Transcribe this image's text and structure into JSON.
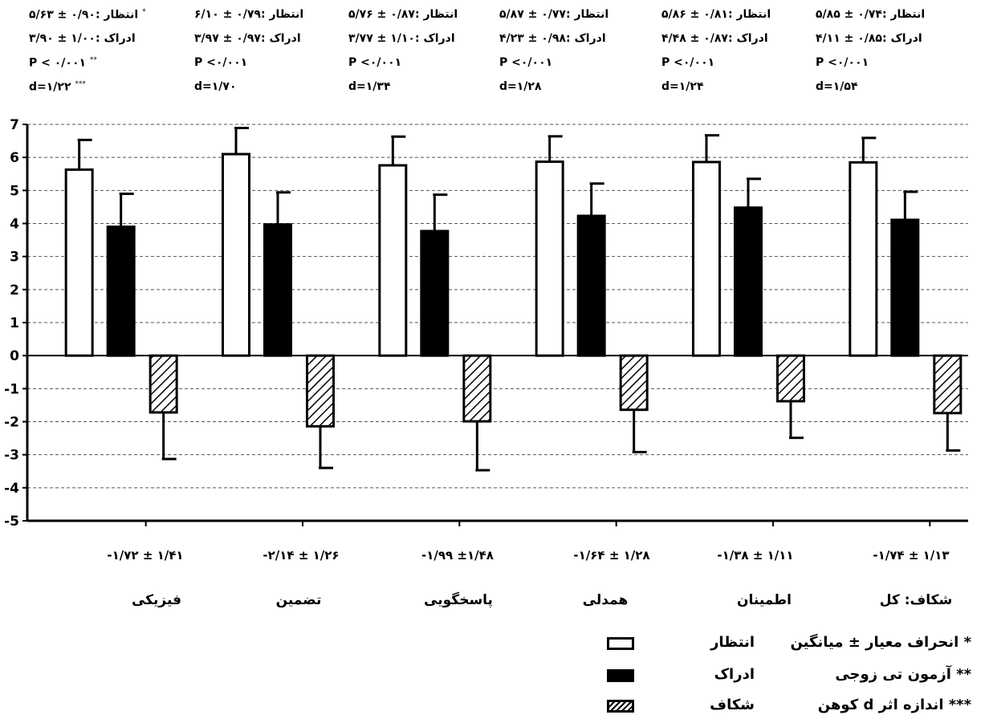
{
  "chart_data": {
    "type": "bar",
    "categories": [
      "فیزیکی",
      "تضمین",
      "پاسخگویی",
      "همدلی",
      "اطمینان",
      "شکاف: کل"
    ],
    "series": [
      {
        "name": "انتظار",
        "values": [
          5.63,
          6.1,
          5.76,
          5.87,
          5.86,
          5.85
        ],
        "errors": [
          0.9,
          0.79,
          0.87,
          0.77,
          0.81,
          0.74
        ],
        "fill": "#ffffff"
      },
      {
        "name": "ادراک",
        "values": [
          3.9,
          3.97,
          3.77,
          4.23,
          4.48,
          4.11
        ],
        "errors": [
          1.0,
          0.97,
          1.1,
          0.98,
          0.87,
          0.85
        ],
        "fill": "#000000"
      },
      {
        "name": "شکاف",
        "values": [
          -1.72,
          -2.14,
          -1.99,
          -1.64,
          -1.38,
          -1.74
        ],
        "errors": [
          1.41,
          1.26,
          1.48,
          1.28,
          1.11,
          1.13
        ],
        "fill": "hatch"
      }
    ],
    "ylim": [
      -5,
      7
    ],
    "yticks": [
      "-5",
      "-4",
      "-3",
      "-2",
      "-1",
      "0",
      "1",
      "2",
      "3",
      "4",
      "5",
      "6",
      "7"
    ],
    "grid": "dashed horizontal",
    "legend_placement": "bottom-right"
  },
  "stats": [
    {
      "expect": "۵/۶۳ ± ۰/۹۰: انتظار",
      "perceive": "۳/۹۰ ± ۱/۰۰: ادراک",
      "p": "P < ۰/۰۰۱",
      "d": "d=۱/۲۲",
      "m1": "*",
      "m2": "**",
      "m3": "***"
    },
    {
      "expect": "۶/۱۰ ± ۰/۷۹: انتظار",
      "perceive": "۳/۹۷ ± ۰/۹۷: ادراک",
      "p": "P <۰/۰۰۱",
      "d": "d=۱/۷۰",
      "m1": "",
      "m2": "",
      "m3": ""
    },
    {
      "expect": "۵/۷۶ ± ۰/۸۷: انتظار",
      "perceive": "۳/۷۷ ± ۱/۱۰: ادراک",
      "p": "P <۰/۰۰۱",
      "d": "d=۱/۳۴",
      "m1": "",
      "m2": "",
      "m3": ""
    },
    {
      "expect": "۵/۸۷ ± ۰/۷۷: انتظار",
      "perceive": "۴/۲۳ ± ۰/۹۸: ادراک",
      "p": "P <۰/۰۰۱",
      "d": "d=۱/۲۸",
      "m1": "",
      "m2": "",
      "m3": ""
    },
    {
      "expect": "۵/۸۶ ± ۰/۸۱: انتظار",
      "perceive": "۴/۴۸ ± ۰/۸۷: ادراک",
      "p": "P <۰/۰۰۱",
      "d": "d=۱/۲۴",
      "m1": "",
      "m2": "",
      "m3": ""
    },
    {
      "expect": "۵/۸۵ ± ۰/۷۴: انتظار",
      "perceive": "۴/۱۱ ± ۰/۸۵: ادراک",
      "p": "P <۰/۰۰۱",
      "d": "d=۱/۵۴",
      "m1": "",
      "m2": "",
      "m3": ""
    }
  ],
  "gap_labels": [
    "-۱/۷۲ ± ۱/۴۱",
    "-۲/۱۴ ± ۱/۲۶",
    "-۱/۹۹ ±۱/۴۸",
    "-۱/۶۴ ± ۱/۲۸",
    "-۱/۳۸ ± ۱/۱۱",
    "-۱/۷۴ ± ۱/۱۳"
  ],
  "legend": [
    {
      "series": "انتظار",
      "desc": "* انحراف معیار ± میانگین"
    },
    {
      "series": "ادراک",
      "desc": "** آزمون تی زوجی"
    },
    {
      "series": "شکاف",
      "desc": "*** اندازه اثر d کوهن"
    }
  ]
}
